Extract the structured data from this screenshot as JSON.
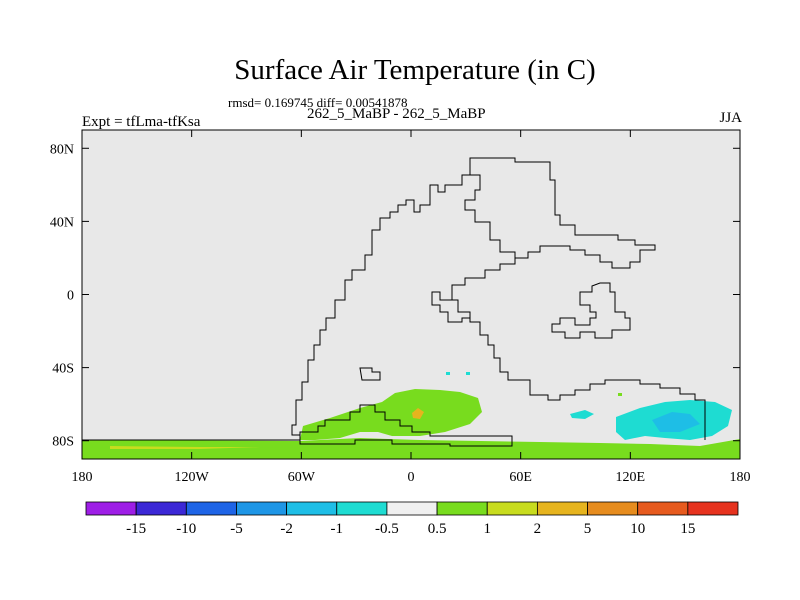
{
  "title": "Surface Air Temperature (in C)",
  "stats_line": "rmsd= 0.169745 diff= 0.00541878",
  "case_line": "262_5_MaBP - 262_5_MaBP",
  "expt_label": "Expt = tfLma-tfKsa",
  "season_label": "JJA",
  "map": {
    "background_color": "#e8e8e8",
    "coast_color": "#000000",
    "lon_ticks": [
      "180",
      "120W",
      "60W",
      "0",
      "60E",
      "120E",
      "180"
    ],
    "lat_ticks": [
      "80N",
      "40N",
      "0",
      "40S",
      "80S"
    ],
    "lon_values": [
      -180,
      -120,
      -60,
      0,
      60,
      120,
      180
    ],
    "lat_values": [
      80,
      40,
      0,
      -40,
      -80
    ]
  },
  "colorbar": {
    "colors": [
      "#9e1ee6",
      "#3c28d6",
      "#1e64e6",
      "#1e96e6",
      "#1ebee6",
      "#1edcd2",
      "#f0f0f0",
      "#78dc1e",
      "#c8dc1e",
      "#e6b41e",
      "#e68c1e",
      "#e65a1e",
      "#e6321e"
    ],
    "labels": [
      "-15",
      "-10",
      "-5",
      "-2",
      "-1",
      "-0.5",
      "0.5",
      "1",
      "2",
      "5",
      "10",
      "15"
    ]
  }
}
